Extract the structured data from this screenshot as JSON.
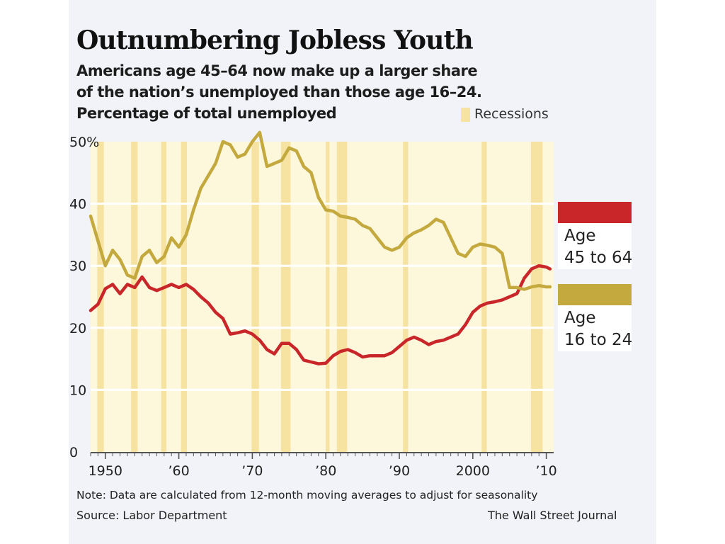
{
  "title": "Outnumbering Jobless Youth",
  "subtitle_lines": [
    "Americans age 45–64 now make up a larger share",
    "of the nation’s unemployed than those age 16–24.",
    "Percentage of total unemployed"
  ],
  "legend": {
    "recession_label": "Recessions",
    "recession_color": "#f6e3a1"
  },
  "note": "Note: Data are calculated from 12-month moving averages to adjust for seasonality",
  "source": "Source: Labor Department",
  "credit": "The Wall Street Journal",
  "chart_data": {
    "type": "line",
    "title": "Outnumbering Jobless Youth",
    "ylabel": "Percentage of total unemployed",
    "xlabel": "",
    "xlim": [
      1948,
      2011
    ],
    "ylim": [
      0,
      50
    ],
    "yticks": [
      0,
      10,
      20,
      30,
      40,
      50
    ],
    "ytick_labels": [
      "0",
      "10",
      "20",
      "30",
      "40",
      "50%"
    ],
    "xticks": [
      1950,
      1960,
      1970,
      1980,
      1990,
      2000,
      2010
    ],
    "xtick_labels": [
      "1950",
      "’60",
      "’70",
      "’80",
      "’90",
      "2000",
      "’10"
    ],
    "grid": true,
    "background_color": "#fdf7dc",
    "recessions": [
      [
        1948.9,
        1949.8
      ],
      [
        1953.5,
        1954.4
      ],
      [
        1957.6,
        1958.3
      ],
      [
        1960.3,
        1961.1
      ],
      [
        1969.9,
        1970.9
      ],
      [
        1973.9,
        1975.2
      ],
      [
        1980.0,
        1980.5
      ],
      [
        1981.5,
        1982.9
      ],
      [
        1990.5,
        1991.2
      ],
      [
        2001.2,
        2001.9
      ],
      [
        2007.9,
        2009.5
      ]
    ],
    "series": [
      {
        "name": "Age 45 to 64",
        "color": "#c9262a",
        "x": [
          1948,
          1949,
          1950,
          1951,
          1952,
          1953,
          1954,
          1955,
          1956,
          1957,
          1958,
          1959,
          1960,
          1961,
          1962,
          1963,
          1964,
          1965,
          1966,
          1967,
          1968,
          1969,
          1970,
          1971,
          1972,
          1973,
          1974,
          1975,
          1976,
          1977,
          1978,
          1979,
          1980,
          1981,
          1982,
          1983,
          1984,
          1985,
          1986,
          1987,
          1988,
          1989,
          1990,
          1991,
          1992,
          1993,
          1994,
          1995,
          1996,
          1997,
          1998,
          1999,
          2000,
          2001,
          2002,
          2003,
          2004,
          2005,
          2006,
          2007,
          2008,
          2009,
          2010,
          2010.5
        ],
        "values": [
          22.8,
          23.8,
          26.3,
          27.0,
          25.5,
          27.0,
          26.5,
          28.2,
          26.5,
          26.0,
          26.5,
          27.0,
          26.5,
          27.0,
          26.2,
          25.0,
          24.0,
          22.5,
          21.5,
          19.0,
          19.2,
          19.5,
          19.0,
          18.0,
          16.5,
          15.8,
          17.5,
          17.5,
          16.5,
          14.8,
          14.5,
          14.2,
          14.3,
          15.5,
          16.2,
          16.5,
          16.0,
          15.3,
          15.5,
          15.5,
          15.5,
          16.0,
          17.0,
          18.0,
          18.5,
          18.0,
          17.3,
          17.8,
          18.0,
          18.5,
          19.0,
          20.5,
          22.5,
          23.5,
          24.0,
          24.2,
          24.5,
          25.0,
          25.5,
          28.0,
          29.5,
          30.0,
          29.8,
          29.5
        ]
      },
      {
        "name": "Age 16 to 24",
        "color": "#c4a93e",
        "x": [
          1948,
          1949,
          1950,
          1951,
          1952,
          1953,
          1954,
          1955,
          1956,
          1957,
          1958,
          1959,
          1960,
          1961,
          1962,
          1963,
          1964,
          1965,
          1966,
          1967,
          1968,
          1969,
          1970,
          1971,
          1972,
          1973,
          1974,
          1975,
          1976,
          1977,
          1978,
          1979,
          1980,
          1981,
          1982,
          1983,
          1984,
          1985,
          1986,
          1987,
          1988,
          1989,
          1990,
          1991,
          1992,
          1993,
          1994,
          1995,
          1996,
          1997,
          1998,
          1999,
          2000,
          2001,
          2002,
          2003,
          2004,
          2005,
          2006,
          2007,
          2008,
          2009,
          2010,
          2010.5
        ],
        "values": [
          38.0,
          34.0,
          30.0,
          32.5,
          31.0,
          28.5,
          28.0,
          31.5,
          32.5,
          30.5,
          31.5,
          34.5,
          33.0,
          35.0,
          39.0,
          42.5,
          44.5,
          46.5,
          50.0,
          49.5,
          47.5,
          48.0,
          50.0,
          51.5,
          46.0,
          46.5,
          47.0,
          49.0,
          48.5,
          46.0,
          45.0,
          41.0,
          39.0,
          38.8,
          38.0,
          37.8,
          37.5,
          36.5,
          36.0,
          34.5,
          33.0,
          32.5,
          33.0,
          34.5,
          35.3,
          35.8,
          36.5,
          37.5,
          37.0,
          34.5,
          32.0,
          31.5,
          33.0,
          33.5,
          33.3,
          33.0,
          32.0,
          26.5,
          26.5,
          26.2,
          26.6,
          26.8,
          26.6,
          26.6
        ]
      }
    ]
  }
}
